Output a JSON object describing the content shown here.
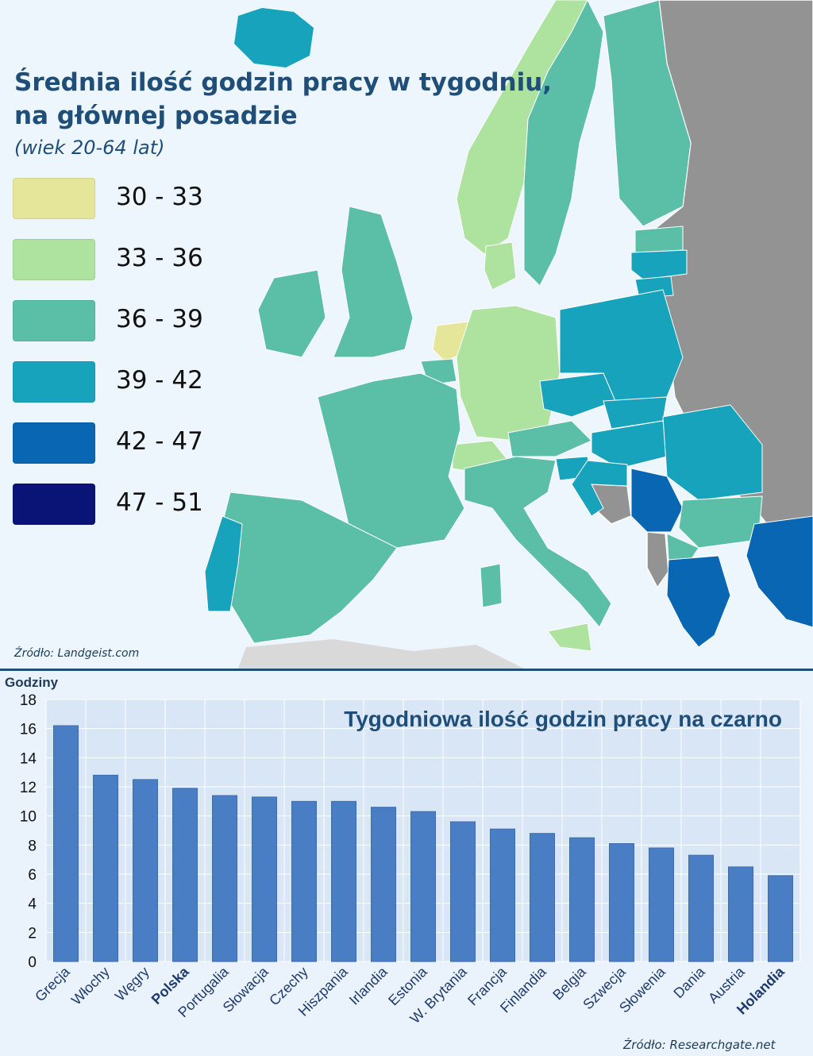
{
  "map": {
    "title_line1": "Średnia ilość godzin pracy w tygodniu,",
    "title_line2": "na głównej posadzie",
    "subtitle": "(wiek 20-64 lat)",
    "legend": [
      {
        "label": "30 - 33",
        "color": "#e5e69a"
      },
      {
        "label": "33 - 36",
        "color": "#ade29f"
      },
      {
        "label": "36 - 39",
        "color": "#5bbfa7"
      },
      {
        "label": "39 - 42",
        "color": "#18a3bd"
      },
      {
        "label": "42 - 47",
        "color": "#0866b3"
      },
      {
        "label": "47 - 51",
        "color": "#0a1476"
      }
    ],
    "source": "Źródło: Landgeist.com"
  },
  "chart_data": {
    "type": "bar",
    "title": "Tygodniowa ilość godzin pracy na czarno",
    "ylabel": "Godziny",
    "ylim": [
      0,
      18
    ],
    "yticks": [
      0,
      2,
      4,
      6,
      8,
      10,
      12,
      14,
      16,
      18
    ],
    "categories": [
      "Grecja",
      "Włochy",
      "Węgry",
      "Polska",
      "Portugalia",
      "Słowacja",
      "Czechy",
      "Hiszpania",
      "Irlandia",
      "Estonia",
      "W. Brytania",
      "Francja",
      "Finlandia",
      "Belgia",
      "Szwecja",
      "Słowenia",
      "Dania",
      "Austria",
      "Holandia"
    ],
    "bold_categories": [
      "Polska",
      "Holandia"
    ],
    "values": [
      16.2,
      12.8,
      12.5,
      11.9,
      11.4,
      11.3,
      11.0,
      11.0,
      10.6,
      10.3,
      9.6,
      9.1,
      8.8,
      8.5,
      8.1,
      7.8,
      7.3,
      6.5,
      5.9
    ],
    "bar_color": "#4a7ec4",
    "grid": true,
    "source": "Źródło: Researchgate.net"
  }
}
